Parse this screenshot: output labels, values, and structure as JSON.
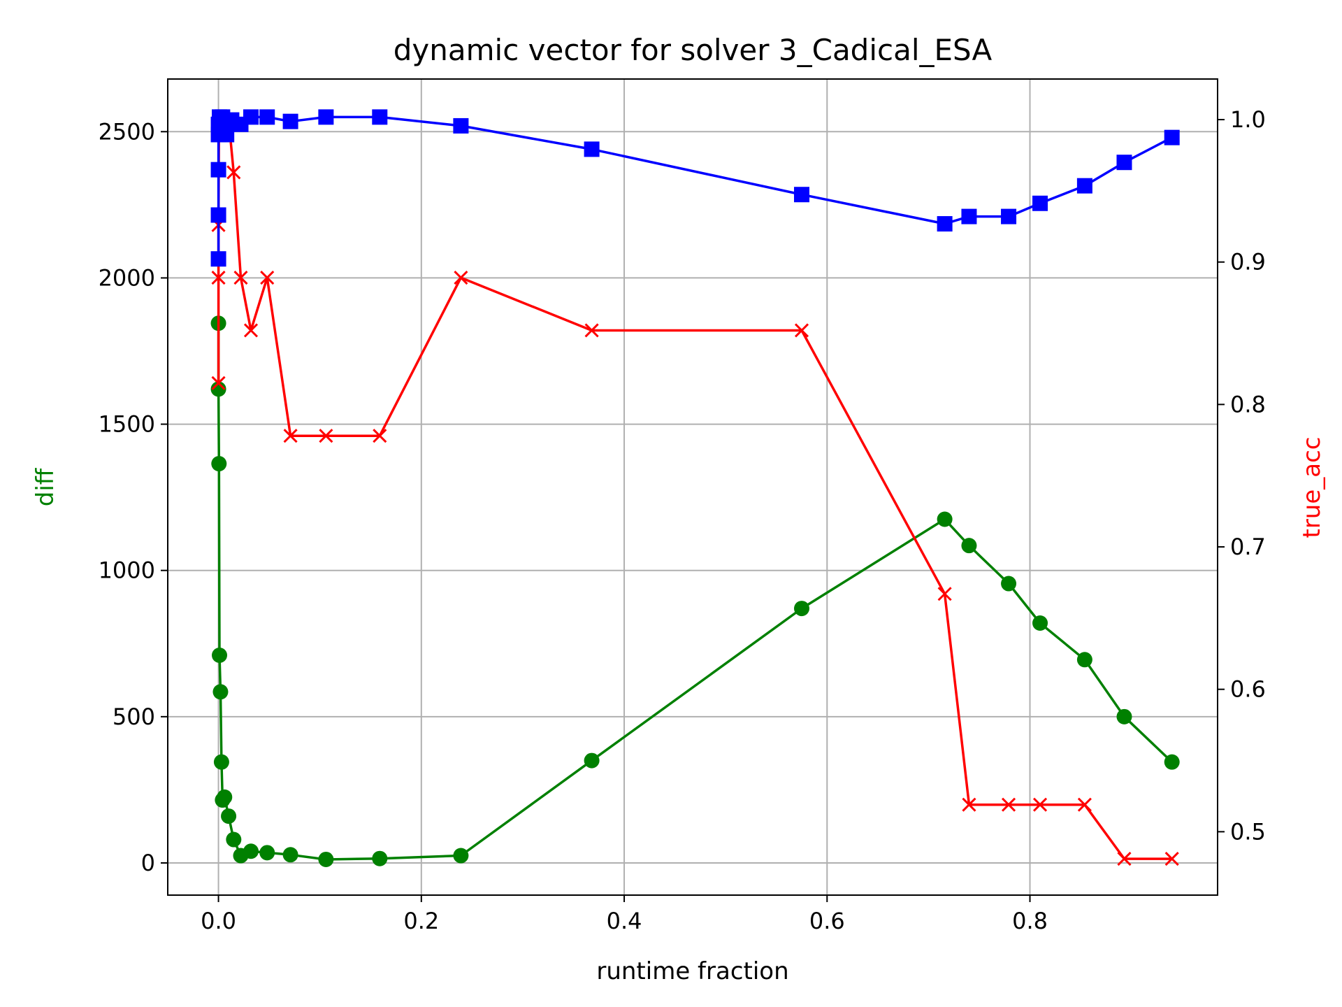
{
  "chart_data": {
    "type": "line",
    "title": "dynamic vector for solver 3_Cadical_ESA",
    "xlabel": "runtime fraction",
    "ylabel_left": "diff",
    "ylabel_right": "true_acc",
    "xlim": [
      -0.05,
      0.985
    ],
    "ylim_left": [
      -110,
      2680
    ],
    "ylim_right": [
      0.4555,
      1.0285
    ],
    "x_ticks": [
      0.0,
      0.2,
      0.4,
      0.6,
      0.8
    ],
    "x_tick_labels": [
      "0.0",
      "0.2",
      "0.4",
      "0.6",
      "0.8"
    ],
    "y_left_ticks": [
      0,
      500,
      1000,
      1500,
      2000,
      2500
    ],
    "y_left_tick_labels": [
      "0",
      "500",
      "1000",
      "1500",
      "2000",
      "2500"
    ],
    "y_right_ticks": [
      0.5,
      0.6,
      0.7,
      0.8,
      0.9,
      1.0
    ],
    "y_right_tick_labels": [
      "0.5",
      "0.6",
      "0.7",
      "0.8",
      "0.9",
      "1.0"
    ],
    "grid": true,
    "colors": {
      "diff": "#008000",
      "true_acc": "#ff0000",
      "third": "#0000ff",
      "title": "#000000"
    },
    "series": [
      {
        "key": "diff",
        "axis": "left",
        "marker": "circle",
        "color": "#008000",
        "x": [
          0.0,
          0.0,
          0.0005,
          0.001,
          0.002,
          0.003,
          0.004,
          0.006,
          0.01,
          0.015,
          0.022,
          0.032,
          0.048,
          0.071,
          0.106,
          0.159,
          0.239,
          0.368,
          0.575,
          0.716,
          0.74,
          0.779,
          0.81,
          0.854,
          0.893,
          0.94
        ],
        "y": [
          1845,
          1620,
          1365,
          710,
          585,
          345,
          215,
          225,
          160,
          80,
          25,
          40,
          35,
          28,
          12,
          15,
          25,
          350,
          870,
          1175,
          1085,
          955,
          820,
          695,
          500,
          345
        ]
      },
      {
        "key": "true_acc",
        "axis": "right",
        "marker": "x",
        "color": "#ff0000",
        "x": [
          0.0,
          0.0,
          0.0,
          0.0005,
          0.001,
          0.002,
          0.004,
          0.007,
          0.01,
          0.015,
          0.022,
          0.032,
          0.048,
          0.071,
          0.106,
          0.159,
          0.239,
          0.368,
          0.575,
          0.716,
          0.74,
          0.779,
          0.81,
          0.854,
          0.893,
          0.94
        ],
        "y": [
          0.815,
          0.889,
          0.926,
          1.0,
          1.0,
          1.0,
          1.0,
          1.0,
          1.0,
          0.963,
          0.889,
          0.852,
          0.889,
          0.778,
          0.778,
          0.778,
          0.889,
          0.852,
          0.852,
          0.667,
          0.519,
          0.519,
          0.519,
          0.519,
          0.481,
          0.481
        ]
      },
      {
        "key": "third",
        "axis": "left",
        "marker": "square",
        "color": "#0000ff",
        "x": [
          0.0,
          0.0,
          0.0,
          0.0,
          0.0,
          0.001,
          0.004,
          0.008,
          0.013,
          0.022,
          0.032,
          0.048,
          0.071,
          0.106,
          0.159,
          0.239,
          0.368,
          0.575,
          0.716,
          0.74,
          0.779,
          0.81,
          0.854,
          0.893,
          0.94
        ],
        "y": [
          2065,
          2215,
          2370,
          2490,
          2525,
          2550,
          2550,
          2490,
          2540,
          2525,
          2550,
          2550,
          2535,
          2550,
          2550,
          2520,
          2440,
          2285,
          2185,
          2210,
          2210,
          2255,
          2315,
          2395,
          2480
        ]
      }
    ]
  }
}
